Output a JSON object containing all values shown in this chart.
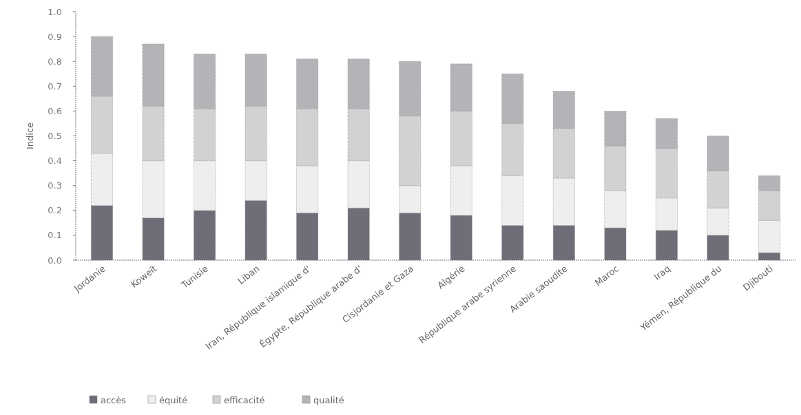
{
  "chart_data": {
    "type": "bar",
    "stacked": true,
    "ylabel": "Indice",
    "categories": [
      "Jordanie",
      "Koweït",
      "Tunisie",
      "Liban",
      "Iran, République islamique d'",
      "Égypte, République arabe d'",
      "Cisjordanie et Gaza",
      "Algérie",
      "République arabe syrienne",
      "Arabie saoudite",
      "Maroc",
      "Iraq",
      "Yémen, République du",
      "Djibouti"
    ],
    "series": [
      {
        "name": "accès",
        "color": "#6e6e78",
        "values": [
          0.22,
          0.17,
          0.2,
          0.24,
          0.19,
          0.21,
          0.19,
          0.18,
          0.14,
          0.14,
          0.13,
          0.12,
          0.1,
          0.03
        ]
      },
      {
        "name": "équité",
        "color": "#eeeeee",
        "values": [
          0.21,
          0.23,
          0.2,
          0.16,
          0.19,
          0.19,
          0.11,
          0.2,
          0.2,
          0.19,
          0.15,
          0.13,
          0.11,
          0.13
        ]
      },
      {
        "name": "efficacité",
        "color": "#d2d2d2",
        "values": [
          0.23,
          0.22,
          0.21,
          0.22,
          0.23,
          0.21,
          0.28,
          0.22,
          0.21,
          0.2,
          0.18,
          0.2,
          0.15,
          0.12
        ]
      },
      {
        "name": "qualité",
        "color": "#b4b4b8",
        "values": [
          0.24,
          0.25,
          0.22,
          0.21,
          0.2,
          0.2,
          0.22,
          0.19,
          0.2,
          0.15,
          0.14,
          0.12,
          0.14,
          0.06
        ]
      }
    ],
    "ylim": [
      0,
      1
    ],
    "yticks": [
      {
        "value": 0,
        "label": "0.0"
      },
      {
        "value": 0.1,
        "label": "0.1"
      },
      {
        "value": 0.2,
        "label": "0.2"
      },
      {
        "value": 0.3,
        "label": "0.3"
      },
      {
        "value": 0.4,
        "label": "0.4"
      },
      {
        "value": 0.5,
        "label": "0.5"
      },
      {
        "value": 0.6,
        "label": "0.6"
      },
      {
        "value": 0.7,
        "label": "0.7"
      },
      {
        "value": 0.8,
        "label": "0.8"
      },
      {
        "value": 0.9,
        "label": "0.9"
      },
      {
        "value": 1,
        "label": "1.0"
      }
    ],
    "legend": "bottom left",
    "grid": false
  }
}
